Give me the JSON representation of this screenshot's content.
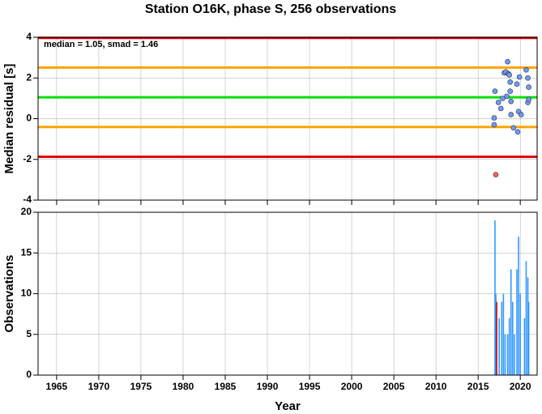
{
  "chart_data": [
    {
      "type": "scatter",
      "title": "Station O16K, phase S, 256 observations",
      "annotation": "median = 1.05, smad = 1.46",
      "ylabel": "Median residual [s]",
      "xlim": [
        1962.8,
        2022
      ],
      "ylim": [
        -4,
        4
      ],
      "xticks": [
        1965,
        1970,
        1975,
        1980,
        1985,
        1990,
        1995,
        2000,
        2005,
        2010,
        2015,
        2020
      ],
      "yticks": [
        -4,
        -2,
        0,
        2,
        4
      ],
      "grid": true,
      "show_xtick_labels": false,
      "hlines": [
        {
          "value": 3.97,
          "color": "#e00000"
        },
        {
          "value": 2.51,
          "color": "#ffa500"
        },
        {
          "value": 1.05,
          "color": "#00e000"
        },
        {
          "value": -0.41,
          "color": "#ffa500"
        },
        {
          "value": -1.87,
          "color": "#e00000"
        }
      ],
      "series": [
        {
          "color": "#6b9bff",
          "x": [
            2016.9,
            2016.9,
            2017.0,
            2017.4,
            2017.7,
            2017.9,
            2018.1,
            2018.3,
            2018.4,
            2018.5,
            2018.6,
            2018.7,
            2018.8,
            2018.8,
            2018.9,
            2018.9,
            2019.2,
            2019.6,
            2019.7,
            2019.8,
            2019.9,
            2020.1,
            2020.7,
            2020.9,
            2020.9,
            2021.0,
            2021.0
          ],
          "values": [
            0.04,
            -0.3,
            1.35,
            0.8,
            0.5,
            1.0,
            2.25,
            2.3,
            1.1,
            2.8,
            2.2,
            2.15,
            1.8,
            1.35,
            0.85,
            0.2,
            -0.45,
            1.7,
            -0.65,
            0.35,
            2.05,
            0.2,
            2.4,
            2.0,
            0.8,
            1.55,
            0.95
          ]
        },
        {
          "color": "#ff6060",
          "x": [
            2017.1
          ],
          "values": [
            -2.75
          ]
        }
      ]
    },
    {
      "type": "bar",
      "ylabel": "Observations",
      "xlabel": "Year",
      "xlim": [
        1962.8,
        2022
      ],
      "ylim": [
        0,
        20
      ],
      "xticks": [
        1965,
        1970,
        1975,
        1980,
        1985,
        1990,
        1995,
        2000,
        2005,
        2010,
        2015,
        2020
      ],
      "yticks": [
        0,
        5,
        10,
        15,
        20
      ],
      "grid": true,
      "show_xtick_labels": true,
      "x": [
        2017.0,
        2017.1,
        2017.2,
        2017.5,
        2017.8,
        2018.0,
        2018.2,
        2018.5,
        2018.7,
        2018.9,
        2019.1,
        2019.3,
        2019.6,
        2019.8,
        2020.0,
        2020.5,
        2020.7,
        2020.9,
        2021.0
      ],
      "values": [
        19,
        10,
        9,
        7,
        9,
        10,
        5,
        5,
        7,
        13,
        9,
        5,
        13,
        17,
        10,
        7,
        14,
        12,
        9
      ],
      "colors": [
        "#3399ff",
        "#3399ff",
        "#e00000",
        "#3399ff",
        "#3399ff",
        "#3399ff",
        "#3399ff",
        "#3399ff",
        "#3399ff",
        "#3399ff",
        "#3399ff",
        "#3399ff",
        "#3399ff",
        "#3399ff",
        "#3399ff",
        "#3399ff",
        "#3399ff",
        "#3399ff",
        "#3399ff"
      ]
    }
  ]
}
